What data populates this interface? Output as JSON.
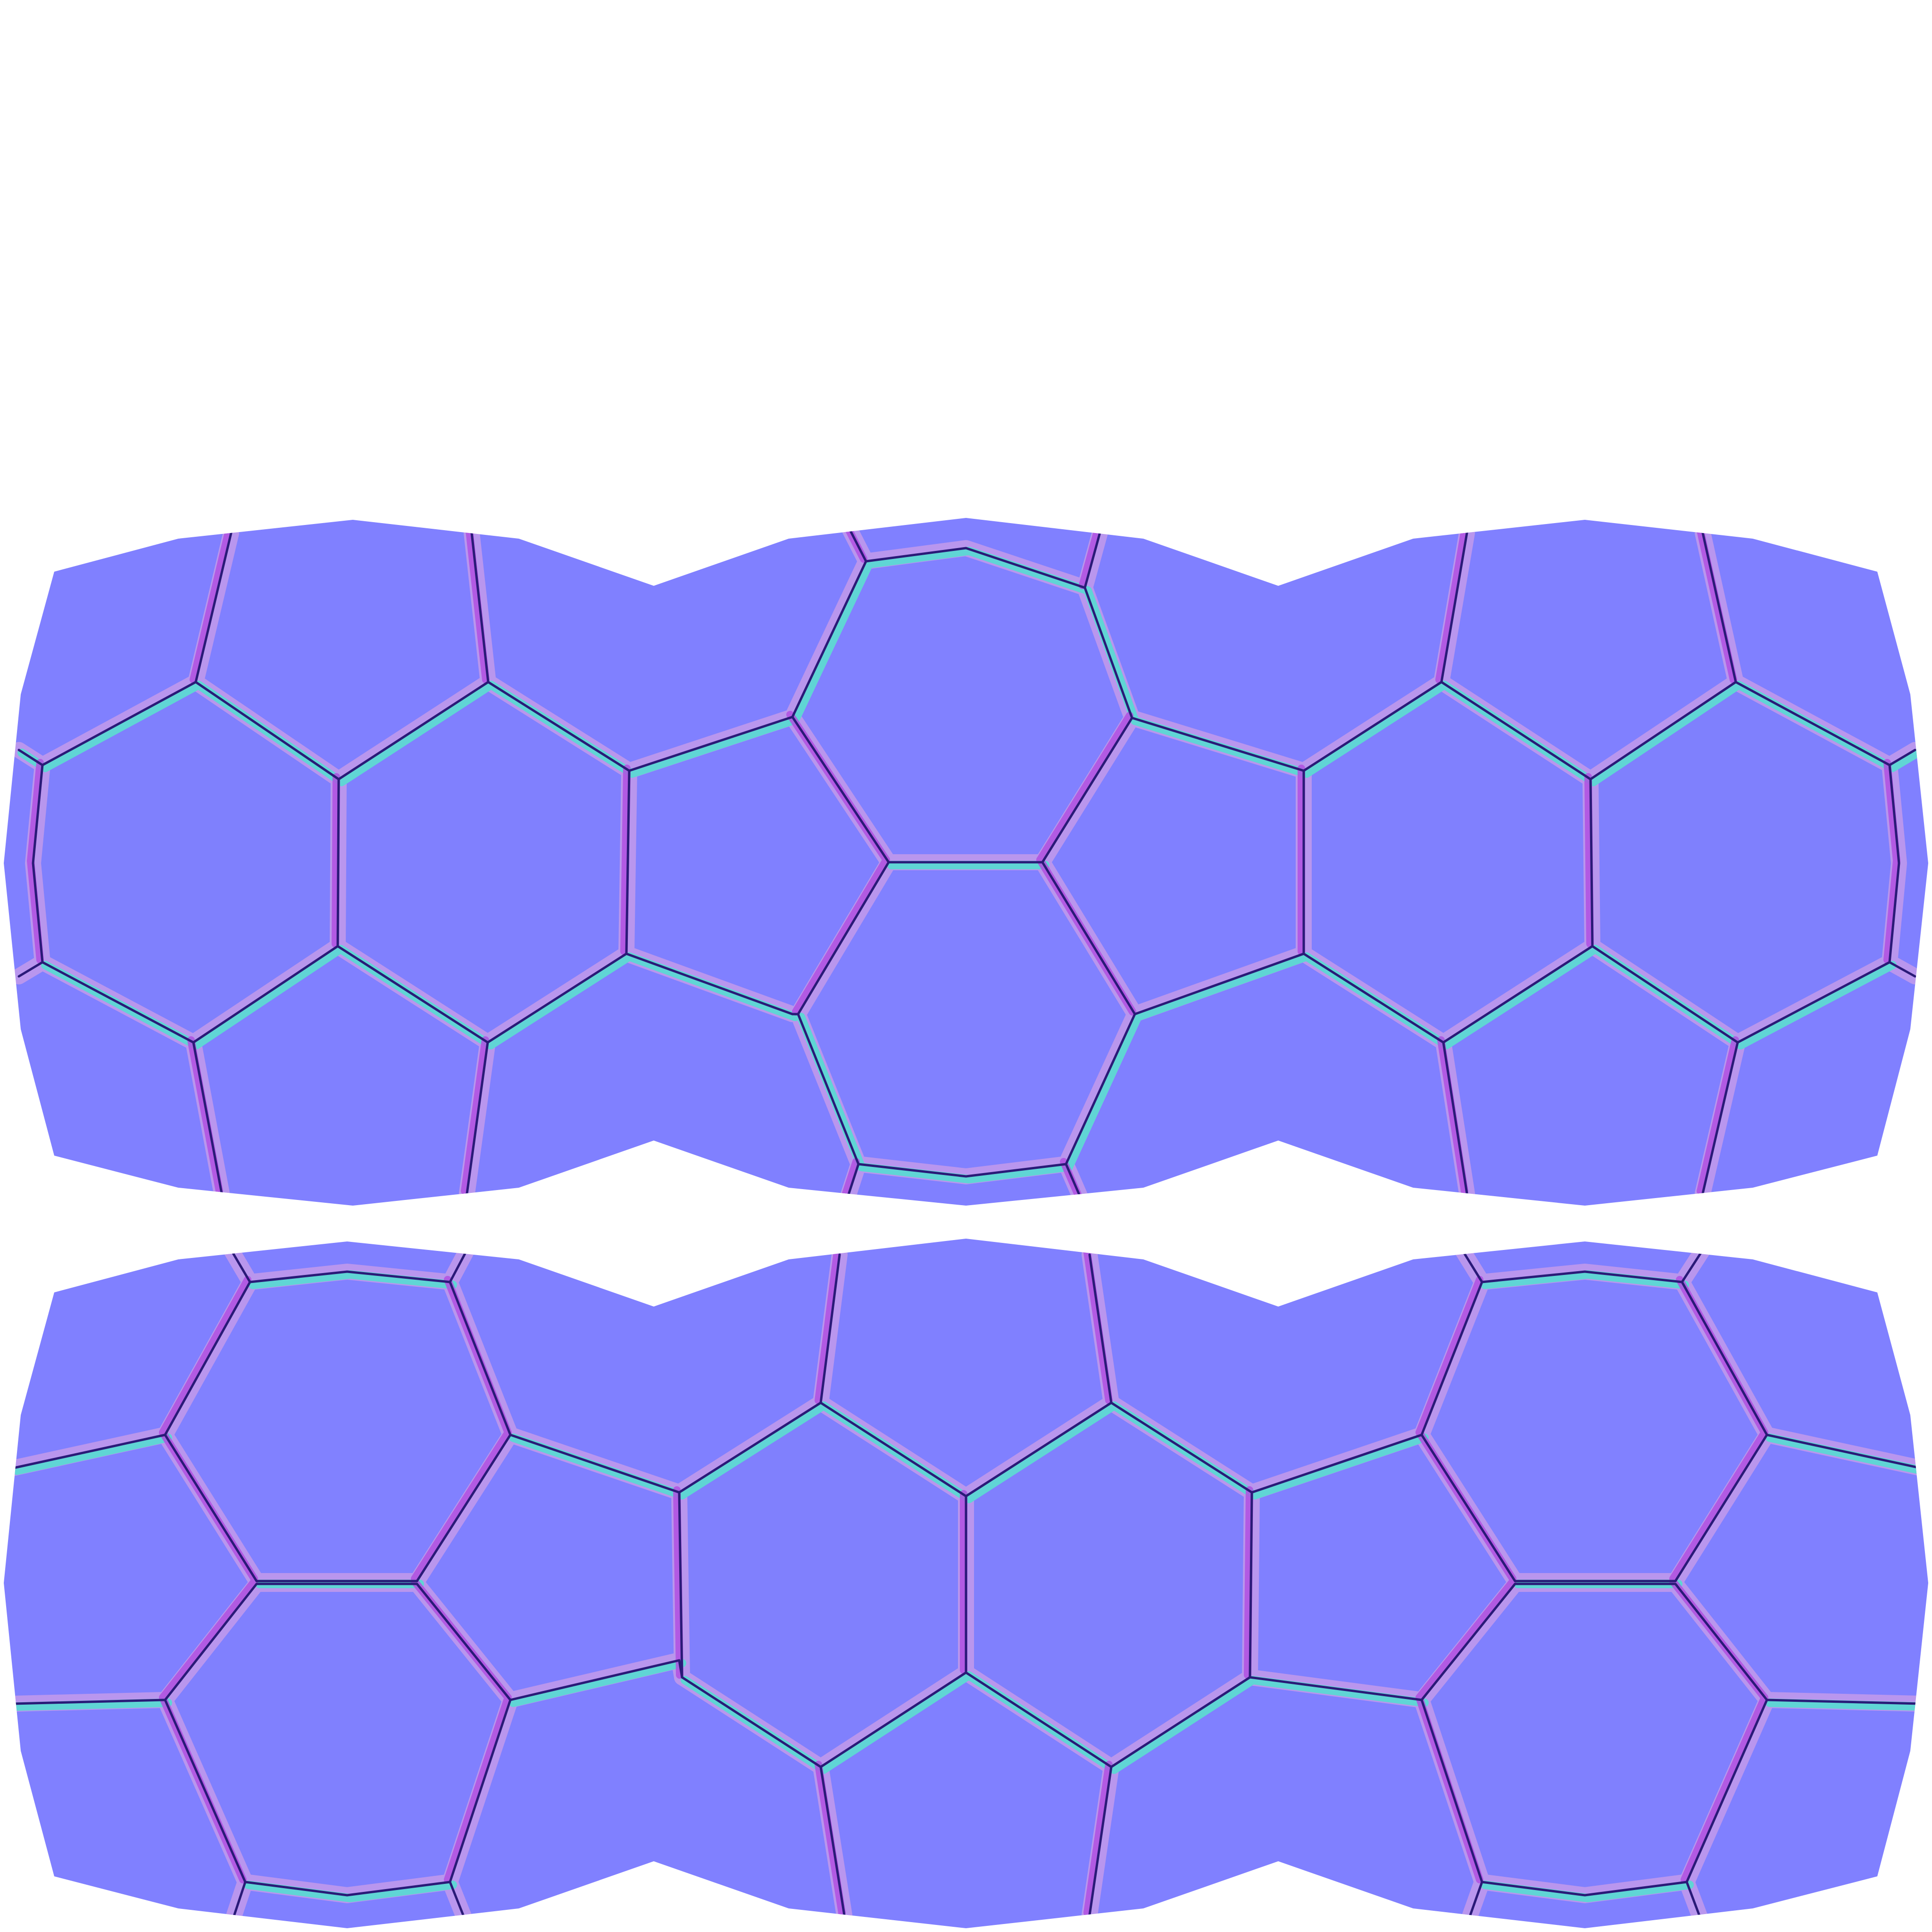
{
  "canvas": {
    "background_color": "#ffffff"
  },
  "texture": {
    "kind": "normal-map",
    "pattern": "hexagonal-tiles",
    "strip_count": 2,
    "colors": {
      "flat": "#8080ff",
      "edge_magenta": "#c070e0",
      "edge_pink": "#f0a0d0",
      "edge_cyan": "#50e0d0",
      "edge_blue": "#3a5ad8",
      "edge_dark": "#4a1aa8"
    }
  }
}
